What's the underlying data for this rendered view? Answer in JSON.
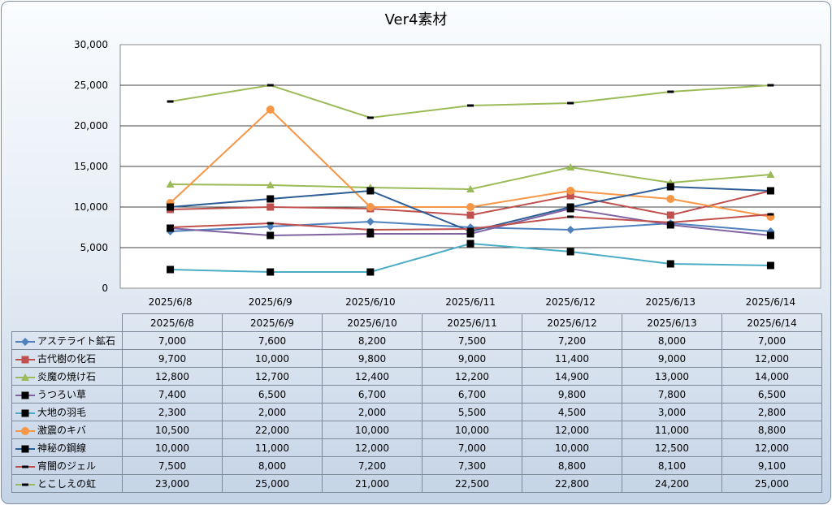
{
  "chart_data": {
    "type": "line",
    "title": "Ver4素材",
    "categories": [
      "2025/6/8",
      "2025/6/9",
      "2025/6/10",
      "2025/6/11",
      "2025/6/12",
      "2025/6/13",
      "2025/6/14"
    ],
    "ylim": [
      0,
      30000
    ],
    "yticks": [
      "0",
      "5,000",
      "10,000",
      "15,000",
      "20,000",
      "25,000",
      "30,000"
    ],
    "grid": true,
    "legend": "data-table",
    "series": [
      {
        "name": "アステライト鉱石",
        "color": "#4f81bd",
        "marker": "diamond",
        "values": [
          7000,
          7600,
          8200,
          7500,
          7200,
          8000,
          7000
        ],
        "labels": [
          "7,000",
          "7,600",
          "8,200",
          "7,500",
          "7,200",
          "8,000",
          "7,000"
        ]
      },
      {
        "name": "古代樹の化石",
        "color": "#c0504d",
        "marker": "square",
        "values": [
          9700,
          10000,
          9800,
          9000,
          11400,
          9000,
          12000
        ],
        "labels": [
          "9,700",
          "10,000",
          "9,800",
          "9,000",
          "11,400",
          "9,000",
          "12,000"
        ]
      },
      {
        "name": "炎魔の焼け石",
        "color": "#9bbb59",
        "marker": "triangle",
        "values": [
          12800,
          12700,
          12400,
          12200,
          14900,
          13000,
          14000
        ],
        "labels": [
          "12,800",
          "12,700",
          "12,400",
          "12,200",
          "14,900",
          "13,000",
          "14,000"
        ]
      },
      {
        "name": "うつろい草",
        "color": "#8064a2",
        "marker": "blacksquare",
        "values": [
          7400,
          6500,
          6700,
          6700,
          9800,
          7800,
          6500
        ],
        "labels": [
          "7,400",
          "6,500",
          "6,700",
          "6,700",
          "9,800",
          "7,800",
          "6,500"
        ]
      },
      {
        "name": "大地の羽毛",
        "color": "#4bacc6",
        "marker": "blacksquare",
        "values": [
          2300,
          2000,
          2000,
          5500,
          4500,
          3000,
          2800
        ],
        "labels": [
          "2,300",
          "2,000",
          "2,000",
          "5,500",
          "4,500",
          "3,000",
          "2,800"
        ]
      },
      {
        "name": "激震のキバ",
        "color": "#f79646",
        "marker": "circle",
        "values": [
          10500,
          22000,
          10000,
          10000,
          12000,
          11000,
          8800
        ],
        "labels": [
          "10,500",
          "22,000",
          "10,000",
          "10,000",
          "12,000",
          "11,000",
          "8,800"
        ]
      },
      {
        "name": "神秘の鋼線",
        "color": "#2c5d95",
        "marker": "blacksquare",
        "values": [
          10000,
          11000,
          12000,
          7000,
          10000,
          12500,
          12000
        ],
        "labels": [
          "10,000",
          "11,000",
          "12,000",
          "7,000",
          "10,000",
          "12,500",
          "12,000"
        ]
      },
      {
        "name": "宵闇のジェル",
        "color": "#c0504d",
        "marker": "dash",
        "values": [
          7500,
          8000,
          7200,
          7300,
          8800,
          8100,
          9100
        ],
        "labels": [
          "7,500",
          "8,000",
          "7,200",
          "7,300",
          "8,800",
          "8,100",
          "9,100"
        ]
      },
      {
        "name": "とこしえの虹",
        "color": "#9bbb59",
        "marker": "dash",
        "values": [
          23000,
          25000,
          21000,
          22500,
          22800,
          24200,
          25000
        ],
        "labels": [
          "23,000",
          "25,000",
          "21,000",
          "22,500",
          "22,800",
          "24,200",
          "25,000"
        ]
      }
    ]
  }
}
